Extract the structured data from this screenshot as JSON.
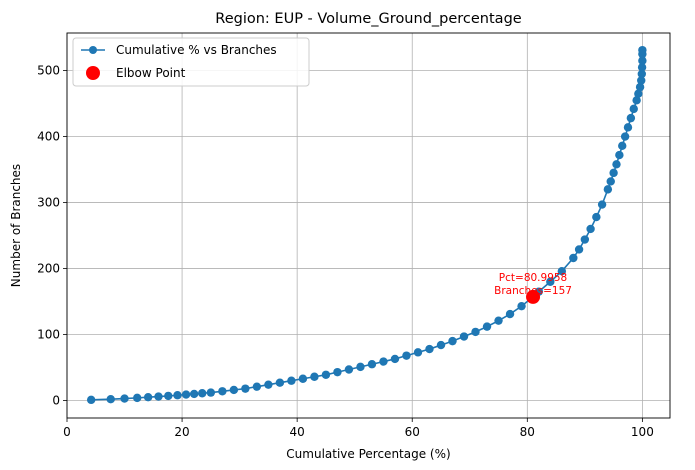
{
  "chart_data": {
    "type": "line",
    "title": "Region: EUP - Volume_Ground_percentage",
    "xlabel": "Cumulative Percentage (%)",
    "ylabel": "Number of Branches",
    "xlim": [
      0,
      104.8
    ],
    "ylim": [
      -26.5,
      557
    ],
    "xticks": [
      0,
      20,
      40,
      60,
      80,
      100
    ],
    "yticks": [
      0,
      100,
      200,
      300,
      400,
      500
    ],
    "xtick_labels": [
      "0",
      "20",
      "40",
      "60",
      "80",
      "100"
    ],
    "ytick_labels": [
      "0",
      "100",
      "200",
      "300",
      "400",
      "500"
    ],
    "grid": true,
    "legend": {
      "placement": "top-left",
      "entries": [
        {
          "label": "Cumulative % vs Branches",
          "kind": "line-marker"
        },
        {
          "label": "Elbow Point",
          "kind": "marker"
        }
      ]
    },
    "series": [
      {
        "name": "Cumulative % vs Branches",
        "color": "#1f77b4",
        "total_points": 531,
        "x": [
          4.2,
          7.6,
          10.0,
          12.2,
          14.1,
          15.9,
          17.6,
          19.2,
          20.7,
          22.1,
          23.5,
          25.0,
          27.0,
          29.0,
          31.0,
          33.0,
          35.0,
          37.0,
          39.0,
          41.0,
          43.0,
          45.0,
          47.0,
          49.0,
          51.0,
          53.0,
          55.0,
          57.0,
          59.0,
          61.0,
          63.0,
          65.0,
          67.0,
          69.0,
          71.0,
          73.0,
          75.0,
          77.0,
          79.0,
          80.9958,
          82.0,
          84.0,
          86.0,
          88.0,
          89.0,
          90.0,
          91.0,
          92.0,
          93.0,
          94.0,
          94.5,
          95.0,
          95.5,
          96.0,
          96.5,
          97.0,
          97.5,
          98.0,
          98.5,
          99.0,
          99.3,
          99.6,
          99.8,
          99.9,
          99.95,
          100.0,
          100.0,
          100.0
        ],
        "y": [
          1,
          2,
          3,
          4,
          5,
          6,
          7,
          8,
          9,
          10,
          11,
          12,
          14,
          16,
          18,
          21,
          24,
          27,
          30,
          33,
          36,
          39,
          43,
          47,
          51,
          55,
          59,
          63,
          68,
          73,
          78,
          84,
          90,
          97,
          104,
          112,
          121,
          131,
          143,
          157,
          165,
          180,
          196,
          216,
          229,
          244,
          260,
          278,
          297,
          320,
          332,
          345,
          358,
          372,
          386,
          400,
          414,
          428,
          442,
          455,
          465,
          475,
          485,
          495,
          505,
          515,
          525,
          531
        ]
      }
    ],
    "elbow_point": {
      "name": "Elbow Point",
      "x": 80.9958,
      "y": 157,
      "color": "#ff0000",
      "annotation_line1": "Pct=80.9958",
      "annotation_line2": "Branches=157"
    }
  }
}
